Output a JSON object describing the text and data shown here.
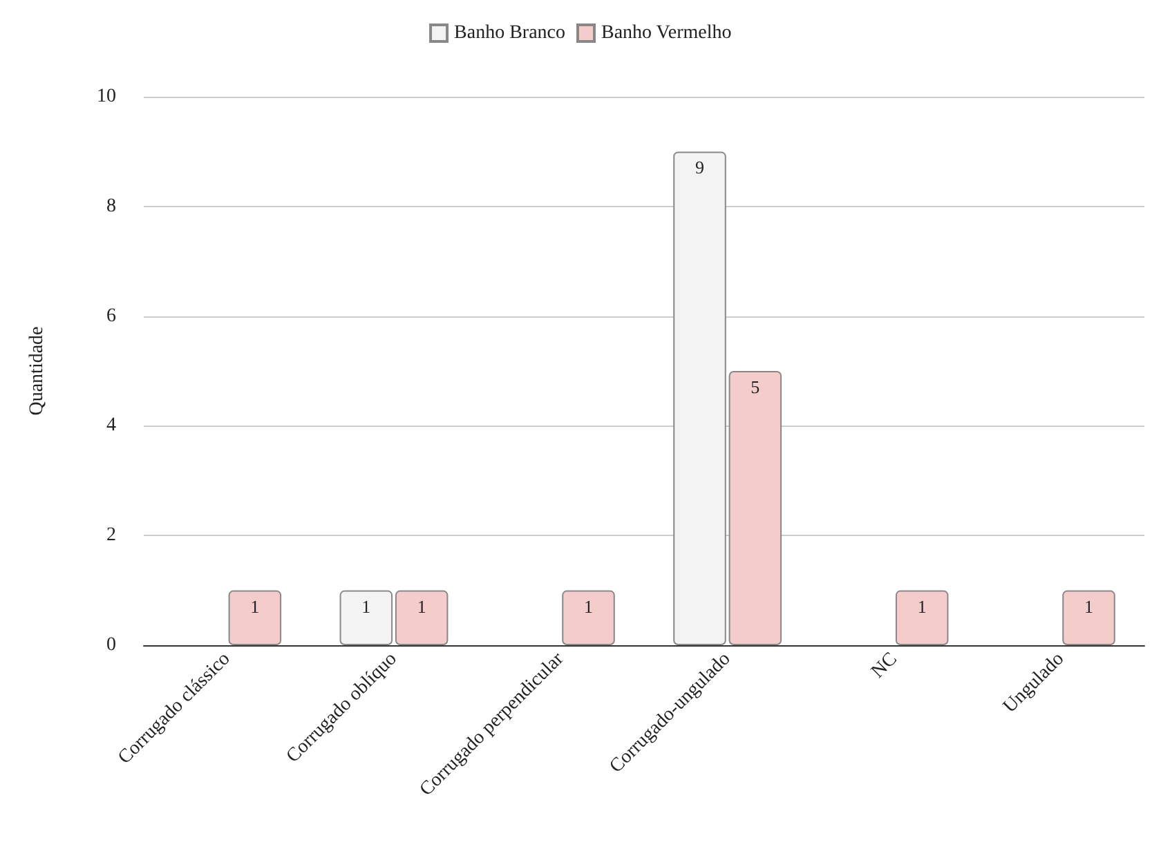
{
  "chart_data": {
    "type": "bar",
    "ylabel": "Quantidade",
    "categories": [
      "Corrugado clássico",
      "Corrugado oblíquo",
      "Corrugado perpendicular",
      "Corrugado-ungulado",
      "NC",
      "Ungulado"
    ],
    "series": [
      {
        "name": "Banho Branco",
        "color": "#f3f3f3",
        "values": [
          null,
          1,
          null,
          9,
          null,
          null
        ]
      },
      {
        "name": "Banho Vermelho",
        "color": "#f4cccc",
        "values": [
          1,
          1,
          1,
          5,
          1,
          1
        ]
      }
    ],
    "ylim": [
      0,
      10
    ],
    "yticks": [
      0,
      2,
      4,
      6,
      8,
      10
    ],
    "grid": "y",
    "legend": "top",
    "data_labels": true
  }
}
